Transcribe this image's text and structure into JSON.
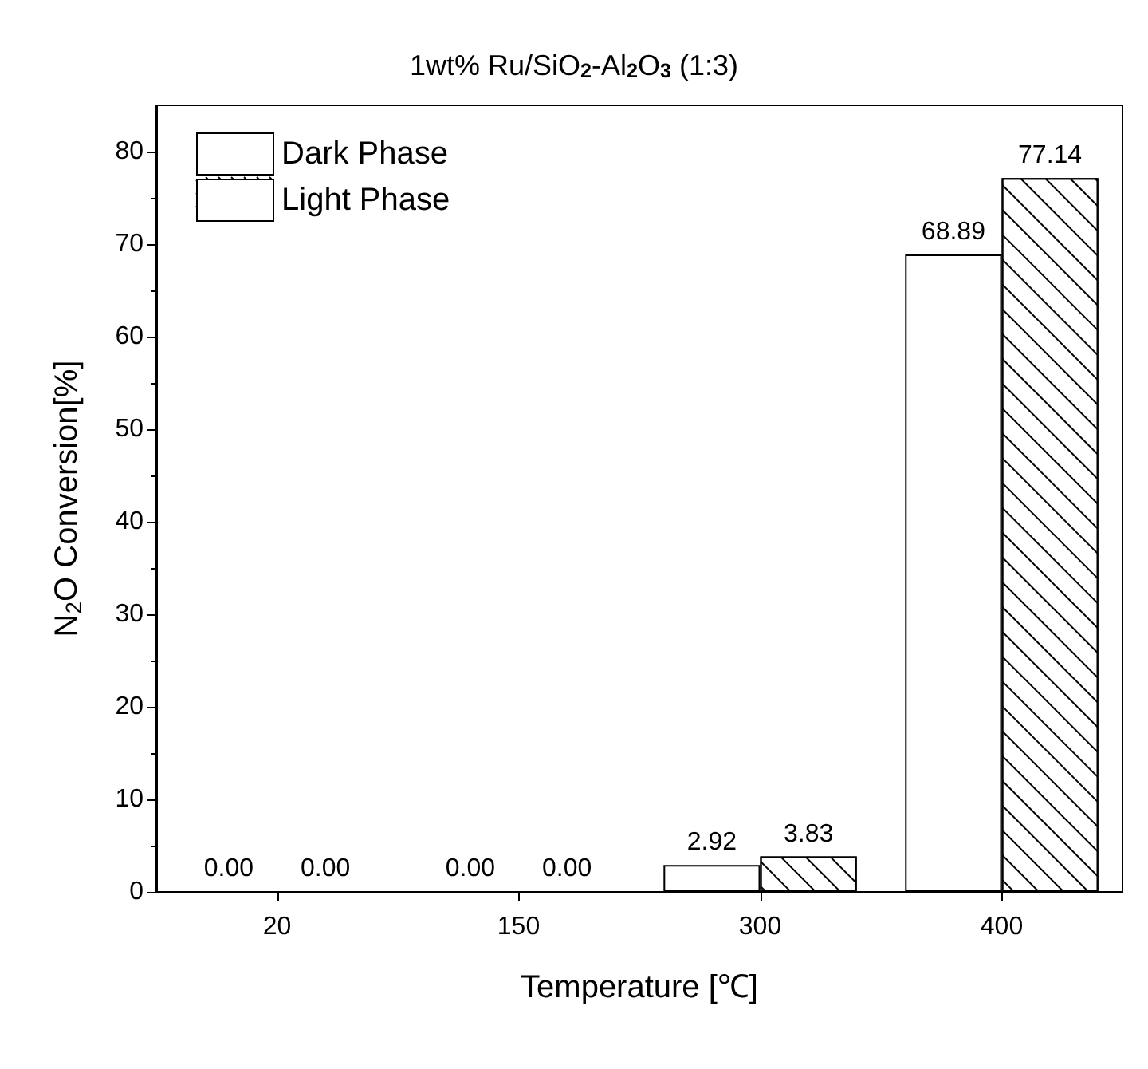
{
  "chart_data": {
    "type": "bar",
    "title": "1wt% Ru/SiO$_{2}$-Al$_{2}$O$_{3}$ (1:3)",
    "xlabel": "Temperature [℃]",
    "ylabel": "N$_{2}$O Conversion[%]",
    "categories": [
      "20",
      "150",
      "300",
      "400"
    ],
    "series": [
      {
        "name": "Dark Phase",
        "color": "#ffffff",
        "values": [
          0,
          0,
          2.92,
          68.89
        ],
        "value_labels": [
          "0.00",
          "0.00",
          "2.92",
          "68.89"
        ]
      },
      {
        "name": "Light Phase",
        "color": "#ffffff",
        "values": [
          0,
          0,
          3.83,
          77.14
        ],
        "value_labels": [
          "0.00",
          "0.00",
          "3.83",
          "77.14"
        ]
      }
    ],
    "ylim": [
      0,
      85
    ],
    "yticks": [
      0,
      10,
      20,
      30,
      40,
      50,
      60,
      70,
      80
    ],
    "grid": false,
    "legend": "top left"
  }
}
